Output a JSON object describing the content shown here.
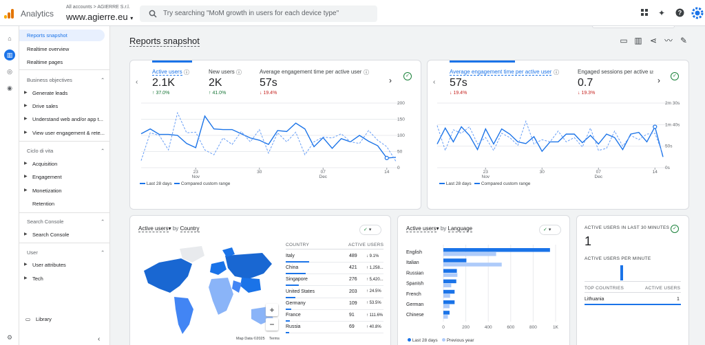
{
  "app": {
    "name": "Analytics",
    "account_path": "All accounts > AGIERRE S.r.l.",
    "property": "www.agierre.eu",
    "property_caret": "▾"
  },
  "search": {
    "placeholder": "Try searching \"MoM growth in users for each device type\""
  },
  "nav": {
    "top": [
      "Reports snapshot",
      "Realtime overview",
      "Realtime pages"
    ],
    "sections": [
      {
        "title": "Business objectives",
        "items": [
          "Generate leads",
          "Drive sales",
          "Understand web and/or app t...",
          "View user engagement & rete..."
        ]
      },
      {
        "title": "Ciclo di vita",
        "items": [
          "Acquisition",
          "Engagement",
          "Monetization",
          "Retention"
        ]
      },
      {
        "title": "Search Console",
        "items": [
          "Search Console"
        ]
      },
      {
        "title": "User",
        "items": [
          "User attributes",
          "Tech"
        ]
      }
    ],
    "library": "Library"
  },
  "page": {
    "title": "Reports snapshot"
  },
  "card1": {
    "metrics": [
      {
        "label": "Active users",
        "value": "2.1K",
        "change": "↑ 37.0%",
        "dir": "up"
      },
      {
        "label": "New users",
        "value": "2K",
        "change": "↑ 41.0%",
        "dir": "up"
      },
      {
        "label": "Average engagement time per active user",
        "value": "57s",
        "change": "↓ 19.4%",
        "dir": "down"
      }
    ],
    "legend": [
      "Last 28 days",
      "Compared custom range"
    ]
  },
  "card2": {
    "metrics": [
      {
        "label": "Average engagement time per active user",
        "value": "57s",
        "change": "↓ 19.4%",
        "dir": "down"
      },
      {
        "label": "Engaged sessions per active us",
        "value": "0.7",
        "change": "↓ 19.3%",
        "dir": "down"
      }
    ],
    "legend": [
      "Last 28 days",
      "Compared custom range"
    ]
  },
  "chart_data": [
    {
      "type": "line",
      "x": [
        "17",
        "18",
        "19",
        "20",
        "21",
        "22",
        "23",
        "24",
        "25",
        "26",
        "27",
        "28",
        "29",
        "30",
        "01",
        "02",
        "03",
        "04",
        "05",
        "06",
        "07",
        "08",
        "09",
        "10",
        "11",
        "12",
        "13",
        "14",
        "15"
      ],
      "xticks": [
        {
          "label": "23",
          "sub": "Nov",
          "i": 6
        },
        {
          "label": "30",
          "sub": "",
          "i": 13
        },
        {
          "label": "07",
          "sub": "Dec",
          "i": 20
        },
        {
          "label": "14",
          "sub": "",
          "i": 27
        }
      ],
      "ylim": [
        0,
        200
      ],
      "yticks": [
        "200",
        "150",
        "100",
        "50",
        "0"
      ],
      "series": [
        {
          "name": "Last 28 days",
          "values": [
            105,
            120,
            103,
            103,
            100,
            75,
            62,
            160,
            120,
            118,
            118,
            105,
            92,
            85,
            72,
            115,
            112,
            138,
            120,
            65,
            93,
            60,
            90,
            80,
            100,
            82,
            68,
            30,
            32
          ]
        },
        {
          "name": "Compared custom range",
          "values": [
            22,
            108,
            100,
            55,
            170,
            108,
            110,
            55,
            40,
            92,
            72,
            112,
            80,
            118,
            45,
            108,
            80,
            110,
            40,
            80,
            95,
            92,
            105,
            80,
            75,
            115,
            85,
            65,
            20
          ]
        }
      ]
    },
    {
      "type": "line",
      "x": [
        "17",
        "18",
        "19",
        "20",
        "21",
        "22",
        "23",
        "24",
        "25",
        "26",
        "27",
        "28",
        "29",
        "30",
        "01",
        "02",
        "03",
        "04",
        "05",
        "06",
        "07",
        "08",
        "09",
        "10",
        "11",
        "12",
        "13",
        "14",
        "15"
      ],
      "xticks": [
        {
          "label": "23",
          "sub": "Nov",
          "i": 6
        },
        {
          "label": "30",
          "sub": "",
          "i": 13
        },
        {
          "label": "07",
          "sub": "Dec",
          "i": 20
        },
        {
          "label": "14",
          "sub": "",
          "i": 27
        }
      ],
      "ylim": [
        0,
        150
      ],
      "yticks": [
        "2m 30s",
        "1m 40s",
        "50s",
        "0s"
      ],
      "series": [
        {
          "name": "Last 28 days",
          "values": [
            55,
            92,
            60,
            95,
            75,
            42,
            90,
            55,
            90,
            78,
            60,
            56,
            72,
            38,
            60,
            60,
            78,
            78,
            58,
            75,
            55,
            78,
            70,
            42,
            78,
            82,
            60,
            95,
            25
          ]
        },
        {
          "name": "Compared custom range",
          "values": [
            98,
            40,
            88,
            80,
            95,
            55,
            70,
            40,
            80,
            70,
            52,
            108,
            55,
            65,
            60,
            85,
            60,
            70,
            48,
            92,
            40,
            45,
            85,
            50,
            75,
            65,
            78,
            80,
            30
          ]
        }
      ]
    },
    {
      "type": "bar",
      "orientation": "horizontal",
      "categories": [
        "English",
        "Italian",
        "Russian",
        "Spanish",
        "French",
        "German",
        "Chinese"
      ],
      "xticks": [
        "0",
        "200",
        "400",
        "600",
        "800",
        "1K"
      ],
      "xlim": [
        0,
        1000
      ],
      "series": [
        {
          "name": "Last 28 days",
          "values": [
            950,
            205,
            120,
            115,
            100,
            100,
            55
          ]
        },
        {
          "name": "Previous year",
          "values": [
            470,
            520,
            125,
            70,
            60,
            55,
            40
          ]
        }
      ]
    }
  ],
  "country_card": {
    "title_metric": "Active users",
    "title_by": "by",
    "title_dim": "Country",
    "col1": "COUNTRY",
    "col2": "ACTIVE USERS",
    "rows": [
      {
        "country": "Italy",
        "value": "489",
        "change": "↓ 9.1%",
        "dir": "down"
      },
      {
        "country": "China",
        "value": "421",
        "change": "↑ 1,258...",
        "dir": "up"
      },
      {
        "country": "Singapore",
        "value": "276",
        "change": "↑ 5,420...",
        "dir": "up"
      },
      {
        "country": "United States",
        "value": "203",
        "change": "↑ 24.5%",
        "dir": "up"
      },
      {
        "country": "Germany",
        "value": "109",
        "change": "↑ 53.5%",
        "dir": "up"
      },
      {
        "country": "France",
        "value": "91",
        "change": "↑ 111.6%",
        "dir": "up"
      },
      {
        "country": "Russia",
        "value": "69",
        "change": "↑ 40.8%",
        "dir": "up"
      }
    ],
    "map_credit": "Map Data ©2025",
    "terms": "Terms",
    "zoom_in": "+",
    "zoom_out": "−"
  },
  "lang_card": {
    "title_metric": "Active users",
    "title_by": "by",
    "title_dim": "Language"
  },
  "realtime": {
    "title": "ACTIVE USERS IN LAST 30 MINUTES",
    "value": "1",
    "per_minute": "ACTIVE USERS PER MINUTE",
    "col1": "TOP COUNTRIES",
    "col2": "ACTIVE USERS",
    "rows": [
      {
        "country": "Lithuania",
        "value": "1"
      }
    ],
    "per_minute_values": [
      1
    ]
  },
  "colors": {
    "primary": "#1a73e8",
    "secondary": "#aecbfa",
    "up": "#137333",
    "down": "#c5221f"
  }
}
